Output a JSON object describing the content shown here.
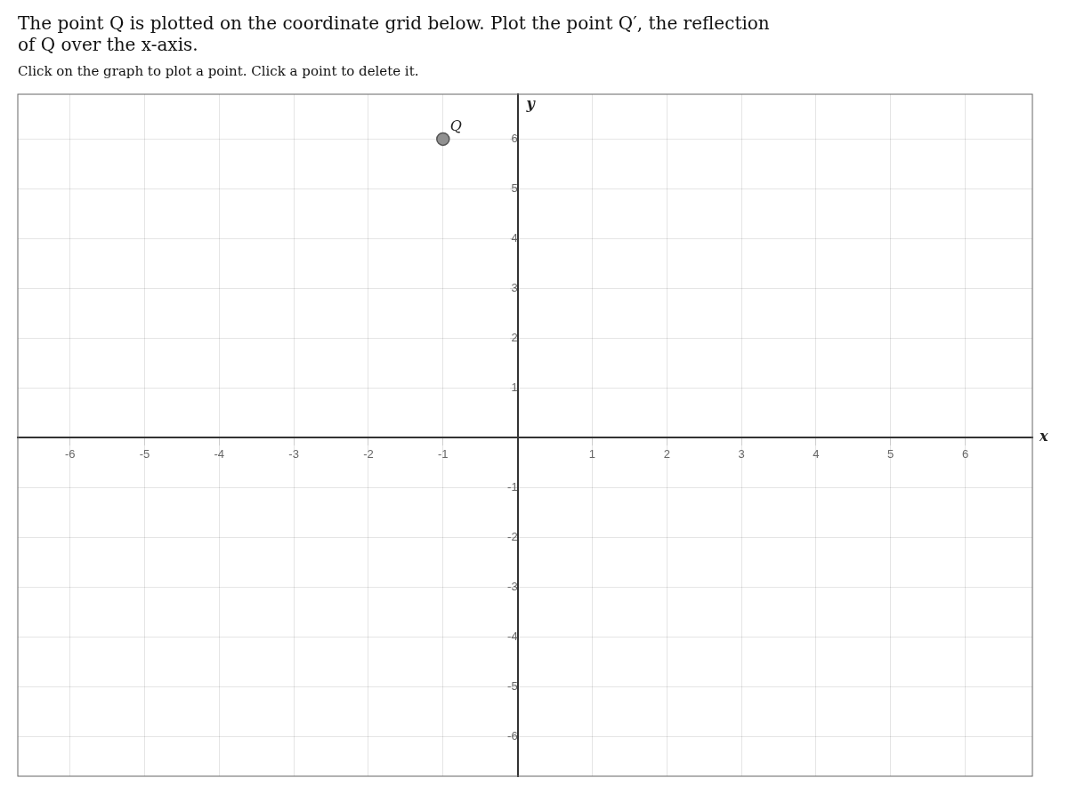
{
  "chart_data": {
    "type": "scatter",
    "title": [
      "The point Q is plotted on the coordinate grid below. Plot the point Q′, the reflection",
      "of Q over the x-axis."
    ],
    "subtitle": "Click on the graph to plot a point. Click a point to delete it.",
    "x_label": "x",
    "y_label": "y",
    "x": [
      -1
    ],
    "values": [
      6
    ],
    "color": "#909090",
    "annotations": [
      {
        "text": "Q",
        "x": -1,
        "y": 6
      }
    ],
    "xlim": [
      -6.7,
      6.9
    ],
    "ylim": [
      -6.8,
      6.9
    ],
    "xticks": [
      -6,
      -5,
      -4,
      -3,
      -2,
      -1,
      1,
      2,
      3,
      4,
      5,
      6
    ],
    "yticks": [
      -6,
      -5,
      -4,
      -3,
      -2,
      -1,
      1,
      2,
      3,
      4,
      5,
      6
    ],
    "grid": true
  }
}
